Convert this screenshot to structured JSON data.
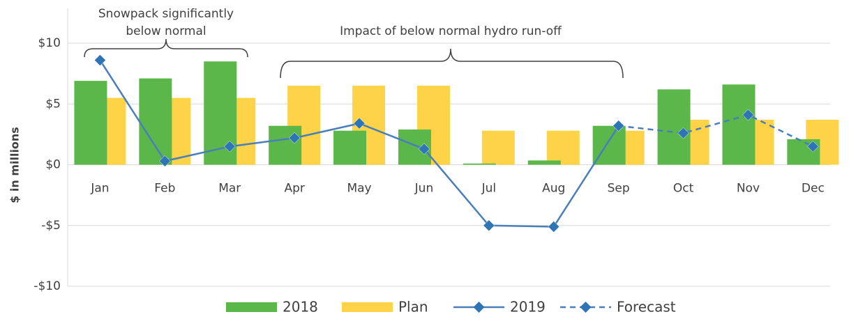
{
  "chart_data": {
    "type": "bar",
    "y_label": "$ in millions",
    "annotations": [
      "Snowpack significantly",
      "below normal",
      "Impact of below normal hydro run-off"
    ],
    "categories": [
      "Jan",
      "Feb",
      "Mar",
      "Apr",
      "May",
      "Jun",
      "Jul",
      "Aug",
      "Sep",
      "Oct",
      "Nov",
      "Dec"
    ],
    "series": [
      {
        "name": "2018",
        "type": "bar",
        "color": "#5bb749",
        "values": [
          6.9,
          7.1,
          8.5,
          3.2,
          2.8,
          2.9,
          0.1,
          0.35,
          3.2,
          6.2,
          6.6,
          2.1
        ]
      },
      {
        "name": "Plan",
        "type": "bar",
        "color": "#ffd347",
        "values": [
          5.5,
          5.5,
          5.5,
          6.5,
          6.5,
          6.5,
          2.8,
          2.8,
          2.8,
          3.7,
          3.7,
          3.7
        ]
      },
      {
        "name": "2019",
        "type": "line",
        "color": "#4a7ebb",
        "marker_color": "#2e75b6",
        "dashed": false,
        "values": [
          8.6,
          0.3,
          1.5,
          2.2,
          3.4,
          1.3,
          -5.0,
          -5.1,
          3.2,
          null,
          null,
          null
        ]
      },
      {
        "name": "Forecast",
        "type": "line",
        "color": "#4a7ebb",
        "marker_color": "#2e75b6",
        "dashed": true,
        "values": [
          null,
          null,
          null,
          null,
          null,
          null,
          null,
          null,
          3.2,
          2.6,
          4.1,
          1.5
        ]
      }
    ],
    "ylim": [
      -10,
      10
    ],
    "yticks": [
      {
        "value": -10,
        "label": "-$10"
      },
      {
        "value": -5,
        "label": "-$5"
      },
      {
        "value": 0,
        "label": "$0"
      },
      {
        "value": 5,
        "label": "$5"
      },
      {
        "value": 10,
        "label": "$10"
      }
    ],
    "grid": true,
    "legend": "bottom"
  }
}
